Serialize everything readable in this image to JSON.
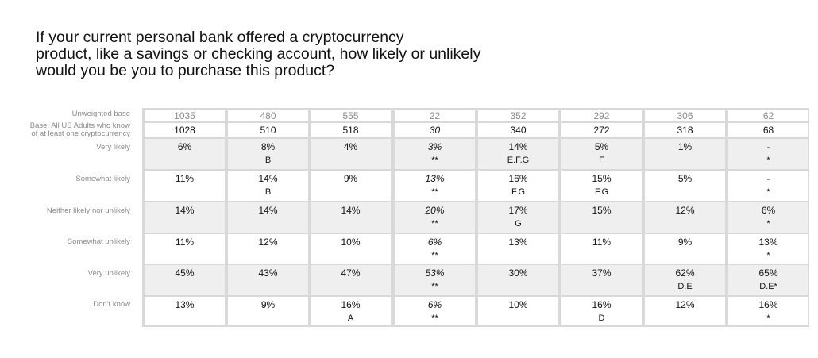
{
  "question": {
    "lines": [
      "If your current personal bank offered a cryptocurrency",
      "product, like a savings or checking account, how likely or unlikely",
      "would you be you to purchase this product?"
    ]
  },
  "table": {
    "row_labels": {
      "unweighted_base": "Unweighted base",
      "base_line1": "Base: All US Adults who know",
      "base_line2": "of at least one cryptocurrency",
      "very_likely": "Very likely",
      "somewhat_likely": "Somewhat likely",
      "neither": "Neither likely nor unlikely",
      "somewhat_unlikely": "Somewhat unlikely",
      "very_unlikely": "Very unlikely",
      "dont_know": "Don't know"
    },
    "columns": [
      {
        "unweighted": "1035",
        "base": "1028",
        "base_italic": false,
        "rows": [
          [
            "6%",
            ""
          ],
          [
            "11%",
            ""
          ],
          [
            "14%",
            ""
          ],
          [
            "11%",
            ""
          ],
          [
            "45%",
            ""
          ],
          [
            "13%",
            ""
          ]
        ],
        "italic": false
      },
      {
        "unweighted": "480",
        "base": "510",
        "base_italic": false,
        "rows": [
          [
            "8%",
            "B"
          ],
          [
            "14%",
            "B"
          ],
          [
            "14%",
            ""
          ],
          [
            "12%",
            ""
          ],
          [
            "43%",
            ""
          ],
          [
            "9%",
            ""
          ]
        ],
        "italic": false
      },
      {
        "unweighted": "555",
        "base": "518",
        "base_italic": false,
        "rows": [
          [
            "4%",
            ""
          ],
          [
            "9%",
            ""
          ],
          [
            "14%",
            ""
          ],
          [
            "10%",
            ""
          ],
          [
            "47%",
            ""
          ],
          [
            "16%",
            "A"
          ]
        ],
        "italic": false
      },
      {
        "unweighted": "22",
        "base": "30",
        "base_italic": true,
        "rows": [
          [
            "3%",
            "**"
          ],
          [
            "13%",
            "**"
          ],
          [
            "20%",
            "**"
          ],
          [
            "6%",
            "**"
          ],
          [
            "53%",
            "**"
          ],
          [
            "6%",
            "**"
          ]
        ],
        "italic": true
      },
      {
        "unweighted": "352",
        "base": "340",
        "base_italic": false,
        "rows": [
          [
            "14%",
            "E.F.G"
          ],
          [
            "16%",
            "F.G"
          ],
          [
            "17%",
            "G"
          ],
          [
            "13%",
            ""
          ],
          [
            "30%",
            ""
          ],
          [
            "10%",
            ""
          ]
        ],
        "italic": false
      },
      {
        "unweighted": "292",
        "base": "272",
        "base_italic": false,
        "rows": [
          [
            "5%",
            "F"
          ],
          [
            "15%",
            "F.G"
          ],
          [
            "15%",
            ""
          ],
          [
            "11%",
            ""
          ],
          [
            "37%",
            ""
          ],
          [
            "16%",
            "D"
          ]
        ],
        "italic": false
      },
      {
        "unweighted": "306",
        "base": "318",
        "base_italic": false,
        "rows": [
          [
            "1%",
            ""
          ],
          [
            "5%",
            ""
          ],
          [
            "12%",
            ""
          ],
          [
            "9%",
            ""
          ],
          [
            "62%",
            "D.E"
          ],
          [
            "12%",
            ""
          ]
        ],
        "italic": false
      },
      {
        "unweighted": "62",
        "base": "68",
        "base_italic": false,
        "rows": [
          [
            "-",
            "*"
          ],
          [
            "-",
            "*"
          ],
          [
            "6%",
            "*"
          ],
          [
            "13%",
            "*"
          ],
          [
            "65%",
            "D.E*"
          ],
          [
            "16%",
            "*"
          ]
        ],
        "italic": false
      }
    ]
  }
}
